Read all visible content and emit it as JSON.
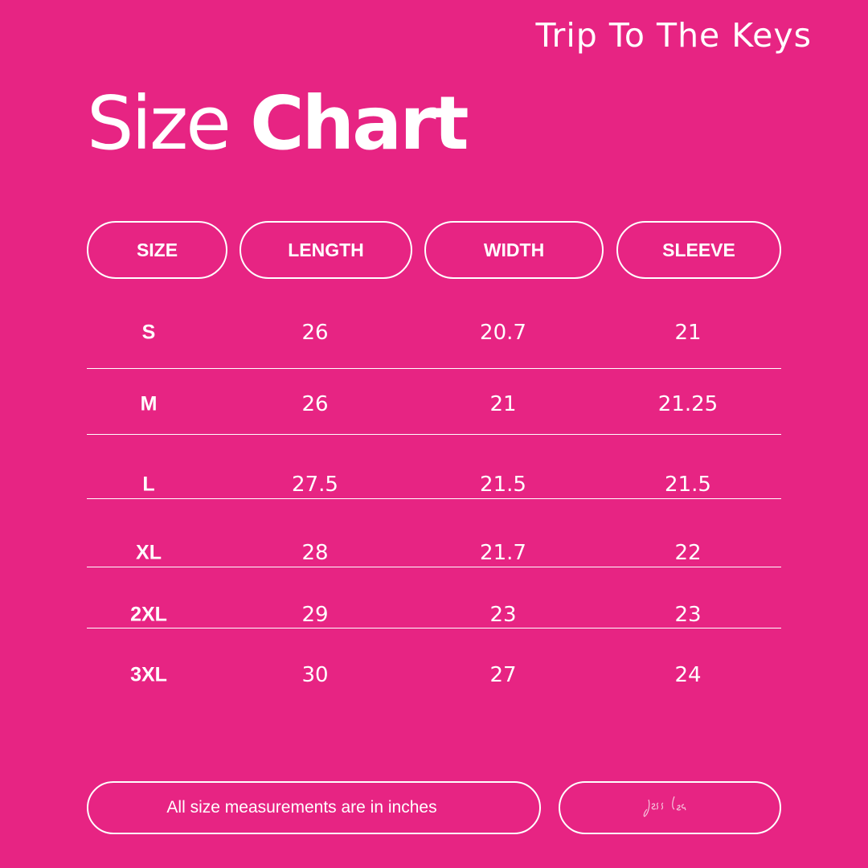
{
  "brand": "Trip To The Keys",
  "title": {
    "regular": "Size",
    "bold": "Chart"
  },
  "headers": [
    "SIZE",
    "LENGTH",
    "WIDTH",
    "SLEEVE"
  ],
  "rows": [
    [
      "S",
      "26",
      "20.7",
      "21"
    ],
    [
      "M",
      "26",
      "21",
      "21.25"
    ],
    [
      "L",
      "27.5",
      "21.5",
      "21.5"
    ],
    [
      "XL",
      "28",
      "21.7",
      "22"
    ],
    [
      "2XL",
      "29",
      "23",
      "23"
    ],
    [
      "3XL",
      "30",
      "27",
      "24"
    ]
  ],
  "footer": {
    "note": "All size measurements are in inches",
    "signature": "jess lea"
  },
  "colors": {
    "background": "#E72483",
    "foreground": "#FFFFFF"
  }
}
